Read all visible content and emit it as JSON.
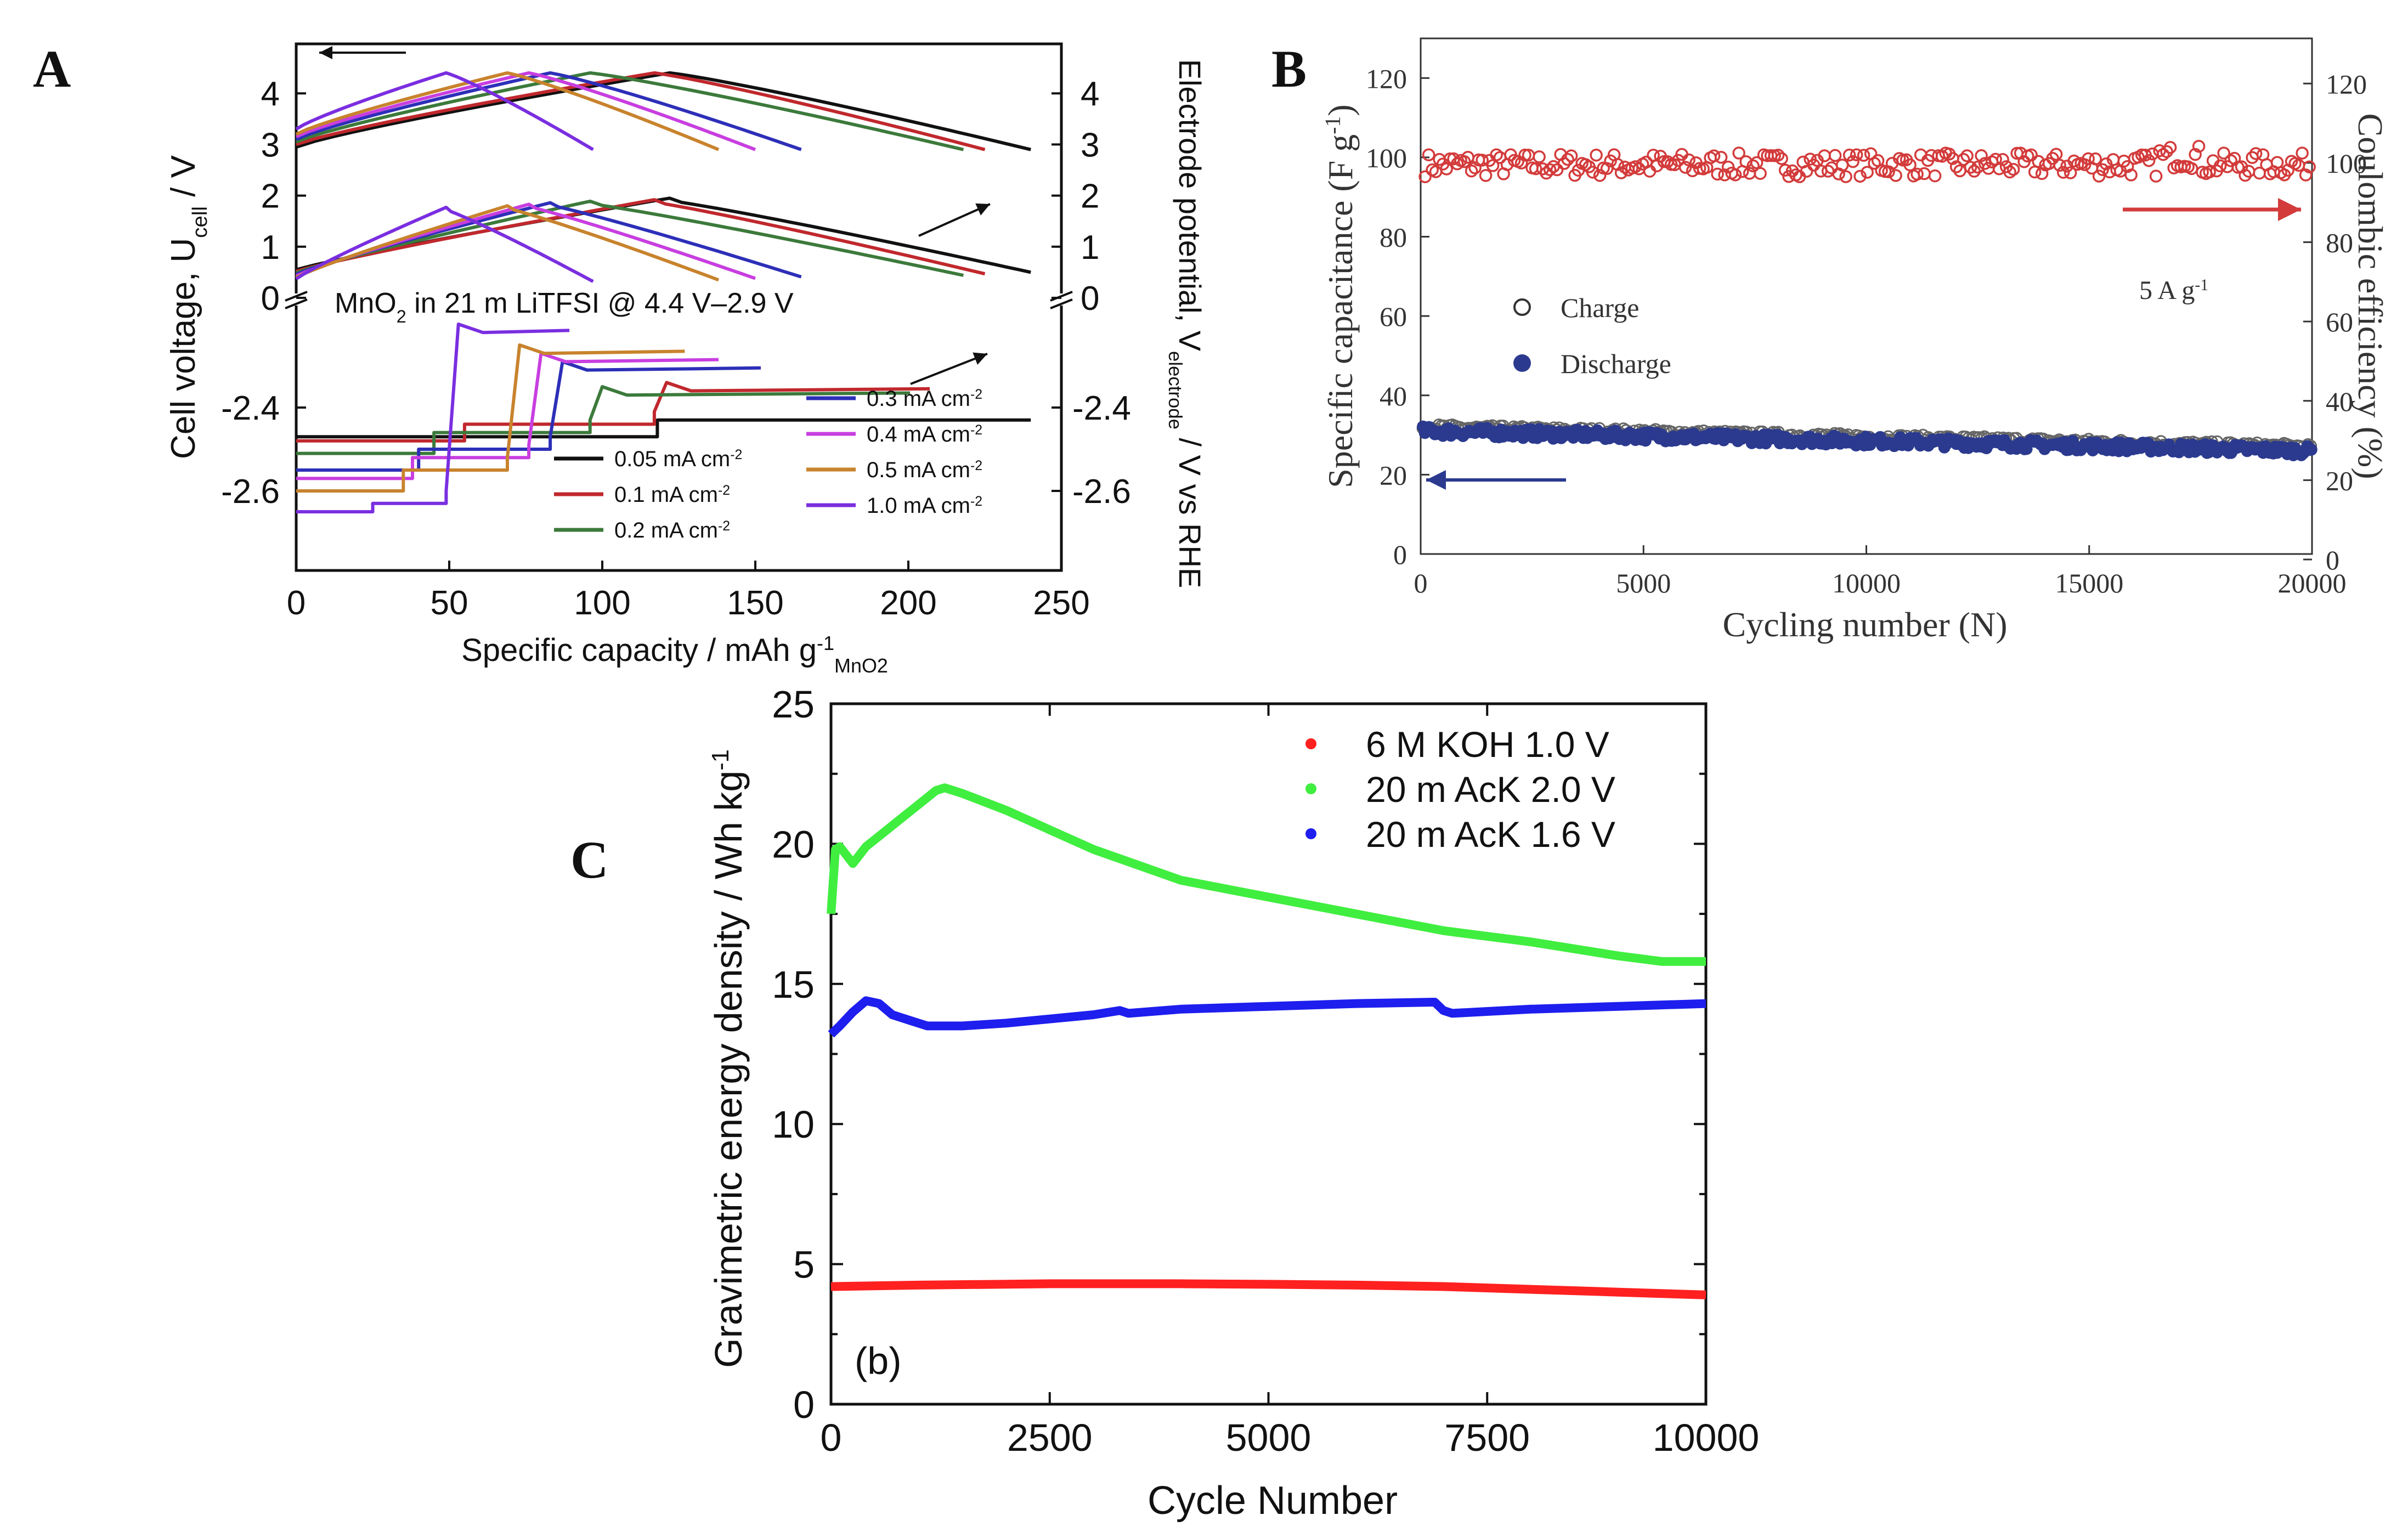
{
  "panel_labels": {
    "a": "A",
    "b": "B",
    "c": "C"
  },
  "chart_data": [
    {
      "id": "A",
      "type": "line",
      "xlabel": "Specific capacity / mAh g",
      "xlabel_sup": "-1",
      "xlabel_sub": "MnO",
      "xlabel_sub2": "2",
      "ylabel_left": "Cell voltage, U",
      "ylabel_left_sub": "cell",
      "ylabel_left_suffix": " / V",
      "ylabel_right": "Electrode potential, V",
      "ylabel_right_sub": "electrode",
      "ylabel_right_suffix": " / V vs RHE",
      "annotation": "MnO",
      "annotation_sub": "2",
      "annotation_suffix": " in 21 m LiTFSI @ 4.4 V–2.9 V",
      "xlim": [
        0,
        250
      ],
      "xticks": [
        "0",
        "50",
        "100",
        "150",
        "200",
        "250"
      ],
      "yticks_upper": [
        "0",
        "1",
        "2",
        "3",
        "4"
      ],
      "yticks_lower": [
        "-2.4",
        "-2.6"
      ],
      "legend": [
        {
          "label": "0.05 mA cm",
          "sup": "-2",
          "color": "#111111"
        },
        {
          "label": "0.1 mA cm",
          "sup": "-2",
          "color": "#c0282d"
        },
        {
          "label": "0.2 mA cm",
          "sup": "-2",
          "color": "#3c7a3b"
        },
        {
          "label": "0.3 mA cm",
          "sup": "-2",
          "color": "#2d2fb8"
        },
        {
          "label": "0.4 mA cm",
          "sup": "-2",
          "color": "#c83ee0"
        },
        {
          "label": "0.5 mA cm",
          "sup": "-2",
          "color": "#c8832d"
        },
        {
          "label": "1.0 mA cm",
          "sup": "-2",
          "color": "#7a2ee0"
        }
      ],
      "series": [
        {
          "name": "0.05 mA cm-2",
          "color": "#111111",
          "charge_cap": 122,
          "discharge_cap": 240,
          "cell_start": 2.95,
          "neg_plateau": -2.43,
          "neg_step1": -2.47,
          "step1_x": 60,
          "step2_x": 122,
          "neg_charge_level": -2.35
        },
        {
          "name": "0.1 mA cm-2",
          "color": "#c0282d",
          "charge_cap": 117,
          "discharge_cap": 225,
          "cell_start": 3.0,
          "neg_plateau": -2.44,
          "neg_step1": -2.48,
          "step1_x": 55,
          "step2_x": 117,
          "neg_charge_level": -2.36
        },
        {
          "name": "0.2 mA cm-2",
          "color": "#3c7a3b",
          "charge_cap": 96,
          "discharge_cap": 218,
          "cell_start": 3.05,
          "neg_plateau": -2.46,
          "neg_step1": -2.51,
          "step1_x": 45,
          "step2_x": 96,
          "neg_charge_level": -2.37
        },
        {
          "name": "0.3 mA cm-2",
          "color": "#2d2fb8",
          "charge_cap": 83,
          "discharge_cap": 165,
          "cell_start": 3.1,
          "neg_plateau": -2.5,
          "neg_step1": -2.55,
          "step1_x": 40,
          "step2_x": 83,
          "neg_charge_level": -2.31
        },
        {
          "name": "0.4 mA cm-2",
          "color": "#c83ee0",
          "charge_cap": 76,
          "discharge_cap": 150,
          "cell_start": 3.15,
          "neg_plateau": -2.52,
          "neg_step1": -2.57,
          "step1_x": 38,
          "step2_x": 76,
          "neg_charge_level": -2.29
        },
        {
          "name": "0.5 mA cm-2",
          "color": "#c8832d",
          "charge_cap": 69,
          "discharge_cap": 138,
          "cell_start": 3.2,
          "neg_plateau": -2.55,
          "neg_step1": -2.6,
          "step1_x": 35,
          "step2_x": 69,
          "neg_charge_level": -2.27
        },
        {
          "name": "1.0 mA cm-2",
          "color": "#7a2ee0",
          "charge_cap": 49,
          "discharge_cap": 97,
          "cell_start": 3.3,
          "neg_plateau": -2.63,
          "neg_step1": -2.65,
          "step1_x": 25,
          "step2_x": 49,
          "neg_charge_level": -2.22
        }
      ]
    },
    {
      "id": "B",
      "type": "scatter",
      "xlabel": "Cycling number (N)",
      "ylabel_left": "Specific capacitance (F g",
      "ylabel_left_sup": "-1",
      "ylabel_left_suffix": ")",
      "ylabel_right": "Coulombic efficiency (%)",
      "annotation": "5 A g",
      "annotation_sup": "-1",
      "xlim": [
        0,
        20000
      ],
      "ylim": [
        0,
        130
      ],
      "xticks": [
        "0",
        "5000",
        "10000",
        "15000",
        "20000"
      ],
      "yticks_left": [
        "0",
        "20",
        "40",
        "60",
        "80",
        "100",
        "120"
      ],
      "yticks_right": [
        "0",
        "20",
        "40",
        "60",
        "80",
        "100",
        "120"
      ],
      "legend": [
        {
          "label": "Charge",
          "marker": "open-circle"
        },
        {
          "label": "Discharge",
          "marker": "filled-circle"
        }
      ],
      "series": [
        {
          "name": "Coulombic efficiency",
          "axis": "right",
          "color": "#d33b3b",
          "mean": 99.5,
          "spread": 3
        },
        {
          "name": "Charge",
          "axis": "left",
          "color": "#555555",
          "start": 32,
          "end": 27
        },
        {
          "name": "Discharge",
          "axis": "left",
          "color": "#2b3a8f",
          "start": 31,
          "end": 26
        }
      ]
    },
    {
      "id": "C",
      "type": "line",
      "xlabel": "Cycle Number",
      "ylabel": "Gravimetric energy density / Wh kg",
      "ylabel_sup": "-1",
      "annotation": "(b)",
      "xlim": [
        0,
        10000
      ],
      "ylim": [
        0,
        25
      ],
      "xticks": [
        "0",
        "2500",
        "5000",
        "7500",
        "10000"
      ],
      "yticks": [
        "0",
        "5",
        "10",
        "15",
        "20",
        "25"
      ],
      "legend": [
        {
          "label": "6   M KOH 1.0 V",
          "color": "#ff2020"
        },
        {
          "label": "20 m AcK  2.0 V",
          "color": "#40ee40"
        },
        {
          "label": "20 m AcK  1.6 V",
          "color": "#1e1eee"
        }
      ],
      "series": [
        {
          "name": "6 M KOH 1.0 V",
          "color": "#ff2020",
          "x": [
            0,
            1000,
            2500,
            4000,
            5000,
            6000,
            7000,
            8000,
            9000,
            10000
          ],
          "y": [
            4.2,
            4.25,
            4.3,
            4.3,
            4.28,
            4.25,
            4.2,
            4.1,
            4.0,
            3.9
          ]
        },
        {
          "name": "20 m AcK 2.0 V",
          "color": "#40ee40",
          "x": [
            0,
            50,
            100,
            250,
            400,
            600,
            800,
            1000,
            1200,
            1300,
            1500,
            2000,
            2500,
            3000,
            4000,
            5000,
            6000,
            7000,
            8000,
            9000,
            9500,
            10000
          ],
          "y": [
            17.5,
            19.8,
            19.9,
            19.3,
            19.9,
            20.4,
            20.9,
            21.4,
            21.9,
            22.0,
            21.8,
            21.2,
            20.5,
            19.8,
            18.7,
            18.1,
            17.5,
            16.9,
            16.5,
            16.0,
            15.8,
            15.8
          ]
        },
        {
          "name": "20 m AcK 1.6 V",
          "color": "#1e1eee",
          "x": [
            0,
            100,
            250,
            400,
            550,
            700,
            900,
            1100,
            1300,
            1500,
            2000,
            3000,
            3300,
            3400,
            4000,
            5000,
            6000,
            6900,
            7000,
            7100,
            8000,
            9000,
            10000
          ],
          "y": [
            13.2,
            13.5,
            14.0,
            14.4,
            14.3,
            13.9,
            13.7,
            13.5,
            13.5,
            13.5,
            13.6,
            13.9,
            14.05,
            13.95,
            14.1,
            14.2,
            14.3,
            14.35,
            14.05,
            13.95,
            14.1,
            14.2,
            14.3
          ]
        }
      ]
    }
  ]
}
